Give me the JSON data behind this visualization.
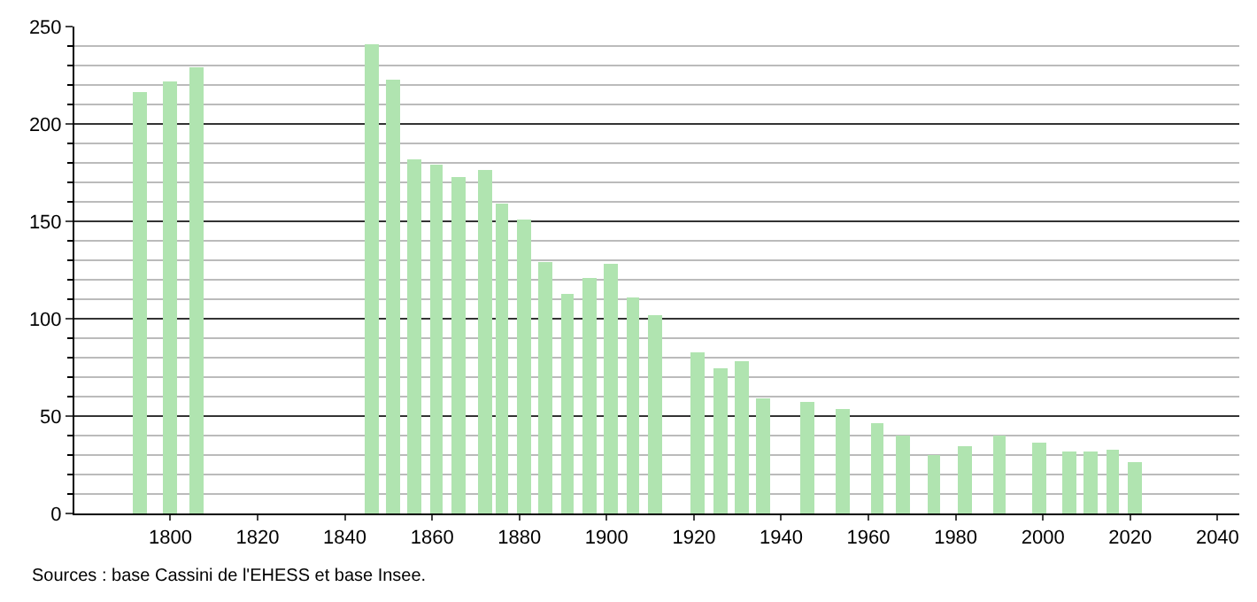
{
  "chart_data": {
    "type": "bar",
    "x": [
      1793,
      1800,
      1806,
      1846,
      1851,
      1856,
      1861,
      1866,
      1872,
      1876,
      1881,
      1886,
      1891,
      1896,
      1901,
      1906,
      1911,
      1921,
      1926,
      1931,
      1936,
      1946,
      1954,
      1962,
      1968,
      1975,
      1982,
      1990,
      1999,
      2006,
      2011,
      2016,
      2021
    ],
    "values": [
      216,
      222,
      229,
      241,
      223,
      182,
      179,
      173,
      176,
      159,
      151,
      129,
      113,
      121,
      128,
      111,
      102,
      83,
      75,
      78,
      59,
      57,
      54,
      46,
      40,
      30,
      35,
      40,
      36,
      32,
      32,
      33,
      26
    ],
    "color": "#b0e4b0",
    "xlim": [
      1778,
      2045
    ],
    "xticks": [
      1800,
      1820,
      1840,
      1860,
      1880,
      1900,
      1920,
      1940,
      1960,
      1980,
      2000,
      2020,
      2040
    ],
    "ylim": [
      0,
      250
    ],
    "yticks": [
      0,
      50,
      100,
      150,
      200,
      250
    ],
    "grid": "y",
    "annotations": [
      "Sources : base Cassini de l'EHESS et base Insee."
    ]
  }
}
